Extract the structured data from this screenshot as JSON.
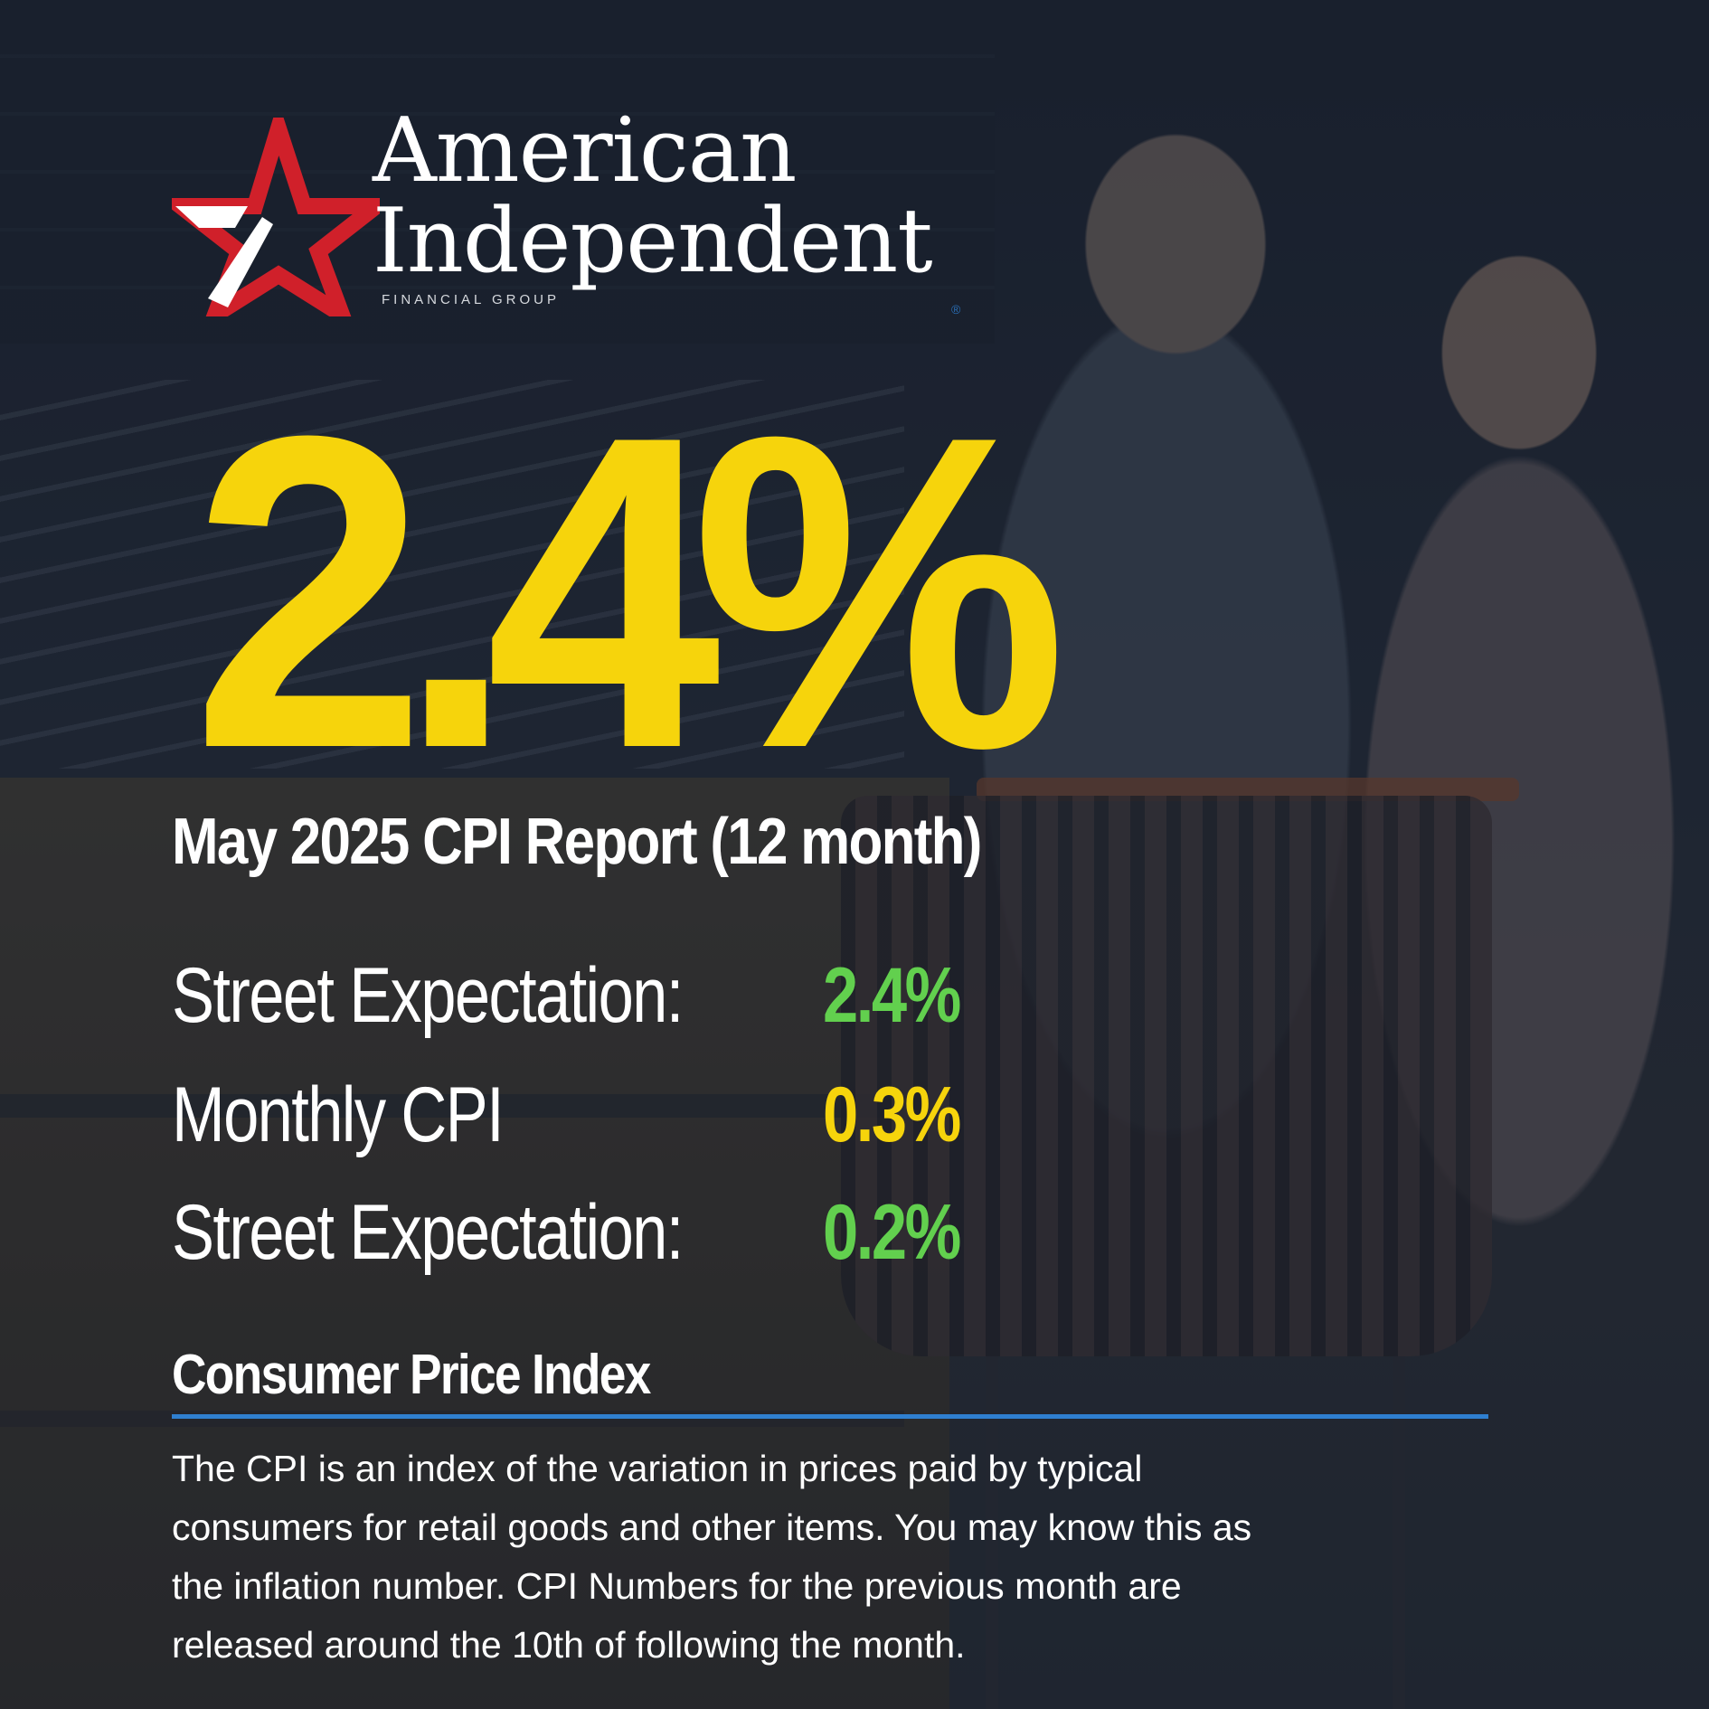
{
  "logo": {
    "line1": "American",
    "line2": "Independent",
    "subline": "FINANCIAL GROUP",
    "registered": "®",
    "icon": "star-icon",
    "colors": {
      "star": "#d0202a",
      "wordmark": "#ffffff"
    }
  },
  "headline": {
    "figure": "2.4%",
    "title": "May 2025 CPI Report (12 month)"
  },
  "stats": [
    {
      "label": "Street Expectation:",
      "value": "2.4%",
      "value_color": "#62d04e"
    },
    {
      "label": "Monthly CPI",
      "value": "0.3%",
      "value_color": "#f6d40c"
    },
    {
      "label": "Street Expectation:",
      "value": "0.2%",
      "value_color": "#62d04e"
    }
  ],
  "definition": {
    "heading": "Consumer Price Index",
    "lines": [
      "The CPI is an index of the variation in prices paid by typical",
      "consumers for retail goods and other items. You may know this as",
      "the inflation number. CPI Numbers for the previous month are",
      "released around the 10th of following the month."
    ],
    "rule_color": "#2f7fd0"
  },
  "colors": {
    "headline_yellow": "#f6d40c",
    "text": "#ffffff"
  }
}
